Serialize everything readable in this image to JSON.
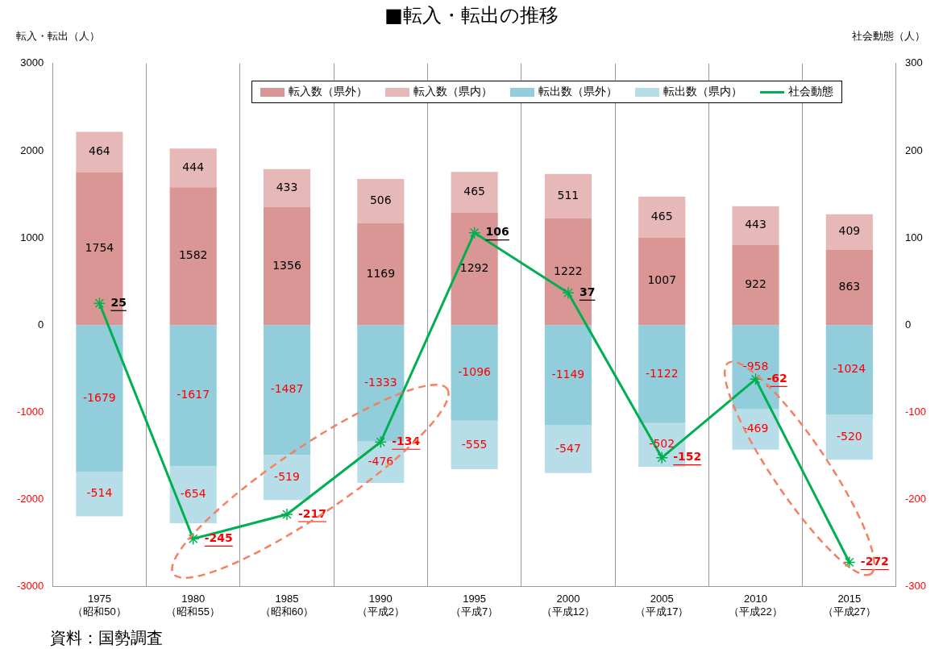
{
  "chart_data": {
    "type": "bar",
    "title": "■転入・転出の推移",
    "ylabel": "転入・転出（人）",
    "y2label": "社会動態（人）",
    "categories": [
      "1975\n（昭和50）",
      "1980\n（昭和55）",
      "1985\n（昭和60）",
      "1990\n（平成2）",
      "1995\n（平成7）",
      "2000\n（平成12）",
      "2005\n（平成17）",
      "2010\n（平成22）",
      "2015\n（平成27）"
    ],
    "stacked": true,
    "series": [
      {
        "name": "転入数（県外）",
        "color": "#d99694",
        "values": [
          1754,
          1582,
          1356,
          1169,
          1292,
          1222,
          1007,
          922,
          863
        ]
      },
      {
        "name": "転入数（県内）",
        "color": "#e6b9b8",
        "values": [
          464,
          444,
          433,
          506,
          465,
          511,
          465,
          443,
          409
        ]
      },
      {
        "name": "転出数（県外）",
        "color": "#92cddc",
        "values": [
          -1679,
          -1617,
          -1487,
          -1333,
          -1096,
          -1149,
          -1122,
          -958,
          -1024
        ]
      },
      {
        "name": "転出数（県内）",
        "color": "#b7dee8",
        "values": [
          -514,
          -654,
          -519,
          -476,
          -555,
          -547,
          -502,
          -469,
          -520
        ]
      },
      {
        "name": "社会動態",
        "type": "line",
        "axis": "y2",
        "color": "#00b050",
        "marker": "cross",
        "values": [
          25,
          -245,
          -217,
          -134,
          106,
          37,
          -152,
          -62,
          -272
        ]
      }
    ],
    "ylim": [
      -3000,
      3000
    ],
    "yticks": [
      -3000,
      -2000,
      -1000,
      0,
      1000,
      2000,
      3000
    ],
    "y2lim": [
      -300,
      300
    ],
    "y2ticks": [
      -300,
      -200,
      -100,
      0,
      100,
      200,
      300
    ],
    "grid": "x",
    "legend": "top right",
    "data_labels": true,
    "annotations": [
      "資料：国勢調査"
    ]
  }
}
